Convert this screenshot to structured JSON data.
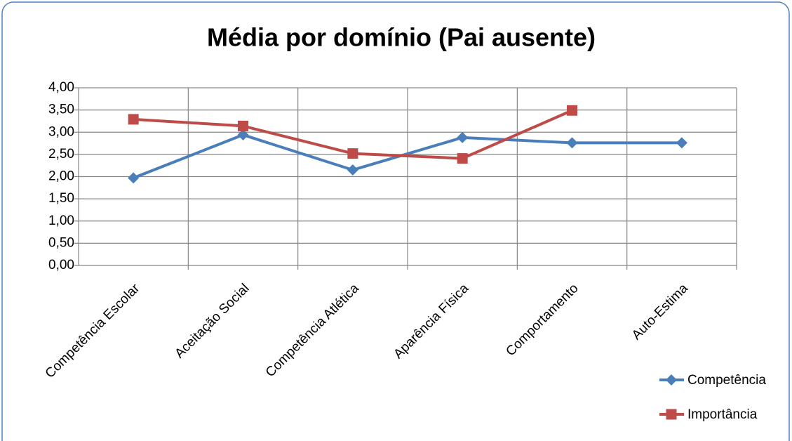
{
  "chart_data": {
    "type": "line",
    "title": "Média por domínio (Pai ausente)",
    "categories": [
      "Competência Escolar",
      "Aceitação Social",
      "Competência Atlética",
      "Aparência Física",
      "Comportamento",
      "Auto-Estima"
    ],
    "series": [
      {
        "name": "Competência",
        "color": "#4a7ebb",
        "marker": "diamond",
        "values": [
          1.97,
          2.94,
          2.15,
          2.88,
          2.76,
          2.76
        ]
      },
      {
        "name": "Importância",
        "color": "#be4b48",
        "marker": "square",
        "values": [
          3.29,
          3.14,
          2.52,
          2.41,
          3.49,
          null
        ]
      }
    ],
    "ylim": [
      0,
      4
    ],
    "yticks": [
      {
        "value": 0,
        "label": "0,00"
      },
      {
        "value": 0.5,
        "label": "0,50"
      },
      {
        "value": 1,
        "label": "1,00"
      },
      {
        "value": 1.5,
        "label": "1,50"
      },
      {
        "value": 2,
        "label": "2,00"
      },
      {
        "value": 2.5,
        "label": "2,50"
      },
      {
        "value": 3,
        "label": "3,00"
      },
      {
        "value": 3.5,
        "label": "3,50"
      },
      {
        "value": 4,
        "label": "4,00"
      }
    ],
    "grid": true,
    "legend": "right"
  }
}
